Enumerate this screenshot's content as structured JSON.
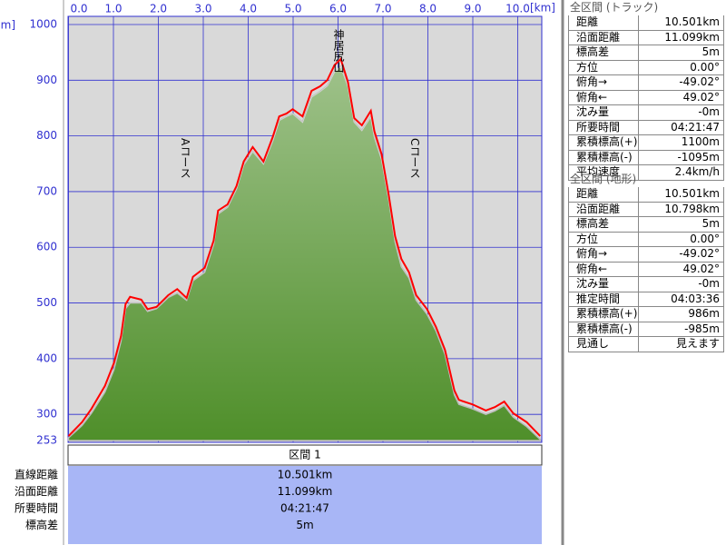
{
  "chart_data": {
    "type": "area",
    "x_unit": "[km]",
    "y_unit": "[m]",
    "xlim": [
      0,
      10.5
    ],
    "xticks": [
      {
        "value": 0,
        "label": "0.0"
      },
      {
        "value": 1,
        "label": "1.0"
      },
      {
        "value": 2,
        "label": "2.0"
      },
      {
        "value": 3,
        "label": "3.0"
      },
      {
        "value": 4,
        "label": "4.0"
      },
      {
        "value": 5,
        "label": "5.0"
      },
      {
        "value": 6,
        "label": "6.0"
      },
      {
        "value": 7,
        "label": "7.0"
      },
      {
        "value": 8,
        "label": "8.0"
      },
      {
        "value": 9,
        "label": "9.0"
      },
      {
        "value": 10,
        "label": "10.0"
      }
    ],
    "ylim": [
      253,
      1000
    ],
    "yticks": [
      253,
      300,
      400,
      500,
      600,
      700,
      800,
      900,
      1000
    ],
    "grid": true,
    "x": [
      0,
      0.3,
      0.51,
      0.81,
      1.01,
      1.17,
      1.27,
      1.37,
      1.62,
      1.76,
      1.96,
      2.22,
      2.42,
      2.63,
      2.77,
      3.03,
      3.23,
      3.33,
      3.54,
      3.74,
      3.9,
      4.1,
      4.34,
      4.55,
      4.69,
      4.85,
      4.99,
      5.21,
      5.41,
      5.6,
      5.76,
      5.92,
      6.06,
      6.22,
      6.36,
      6.53,
      6.73,
      6.81,
      6.97,
      7.13,
      7.27,
      7.41,
      7.58,
      7.74,
      7.98,
      8.18,
      8.38,
      8.59,
      8.69,
      8.99,
      9.29,
      9.49,
      9.7,
      9.9,
      10.2,
      10.5
    ],
    "series": [
      {
        "style": "area",
        "color": "#4f8f2a",
        "values": [
          258,
          280,
          302,
          340,
          380,
          432,
          490,
          500,
          500,
          485,
          490,
          510,
          518,
          505,
          540,
          555,
          605,
          660,
          672,
          705,
          748,
          772,
          750,
          792,
          828,
          835,
          840,
          825,
          870,
          880,
          890,
          915,
          925,
          890,
          825,
          810,
          835,
          798,
          758,
          685,
          610,
          565,
          545,
          505,
          480,
          450,
          408,
          335,
          318,
          310,
          300,
          306,
          316,
          295,
          278,
          255
        ]
      },
      {
        "style": "line",
        "color": "#ff0000",
        "values": [
          261,
          286,
          310,
          351,
          392,
          441,
          498,
          511,
          506,
          489,
          493,
          514,
          525,
          509,
          547,
          563,
          612,
          666,
          677,
          710,
          754,
          780,
          754,
          799,
          835,
          840,
          848,
          835,
          881,
          889,
          900,
          927,
          938,
          897,
          832,
          819,
          845,
          808,
          767,
          693,
          620,
          579,
          555,
          514,
          489,
          457,
          416,
          343,
          326,
          318,
          307,
          313,
          323,
          302,
          286,
          261
        ]
      }
    ],
    "annotations": [
      "Aコース",
      "神居尻山",
      "Cコース"
    ]
  },
  "section_table": {
    "header": "区間 1",
    "rows": [
      [
        "直線距離",
        "10.501km"
      ],
      [
        "沿面距離",
        "11.099km"
      ],
      [
        "所要時間",
        "04:21:47"
      ],
      [
        "標高差",
        "5m"
      ]
    ]
  },
  "track_panel": {
    "title": "全区間 (トラック)",
    "rows": [
      [
        "距離",
        "10.501km"
      ],
      [
        "沿面距離",
        "11.099km"
      ],
      [
        "標高差",
        "5m"
      ],
      [
        "方位",
        "0.00°"
      ],
      [
        "俯角→",
        "-49.02°"
      ],
      [
        "俯角←",
        "49.02°"
      ],
      [
        "沈み量",
        "-0m"
      ],
      [
        "所要時間",
        "04:21:47"
      ],
      [
        "累積標高(+)",
        "1100m"
      ],
      [
        "累積標高(-)",
        "-1095m"
      ],
      [
        "平均速度",
        "2.4km/h"
      ]
    ]
  },
  "terrain_panel": {
    "title": "全区間 (地形)",
    "rows": [
      [
        "距離",
        "10.501km"
      ],
      [
        "沿面距離",
        "10.798km"
      ],
      [
        "標高差",
        "5m"
      ],
      [
        "方位",
        "0.00°"
      ],
      [
        "俯角→",
        "-49.02°"
      ],
      [
        "俯角←",
        "49.02°"
      ],
      [
        "沈み量",
        "-0m"
      ],
      [
        "推定時間",
        "04:03:36"
      ],
      [
        "累積標高(+)",
        "986m"
      ],
      [
        "累積標高(-)",
        "-985m"
      ],
      [
        "見通し",
        "見えます"
      ]
    ]
  }
}
